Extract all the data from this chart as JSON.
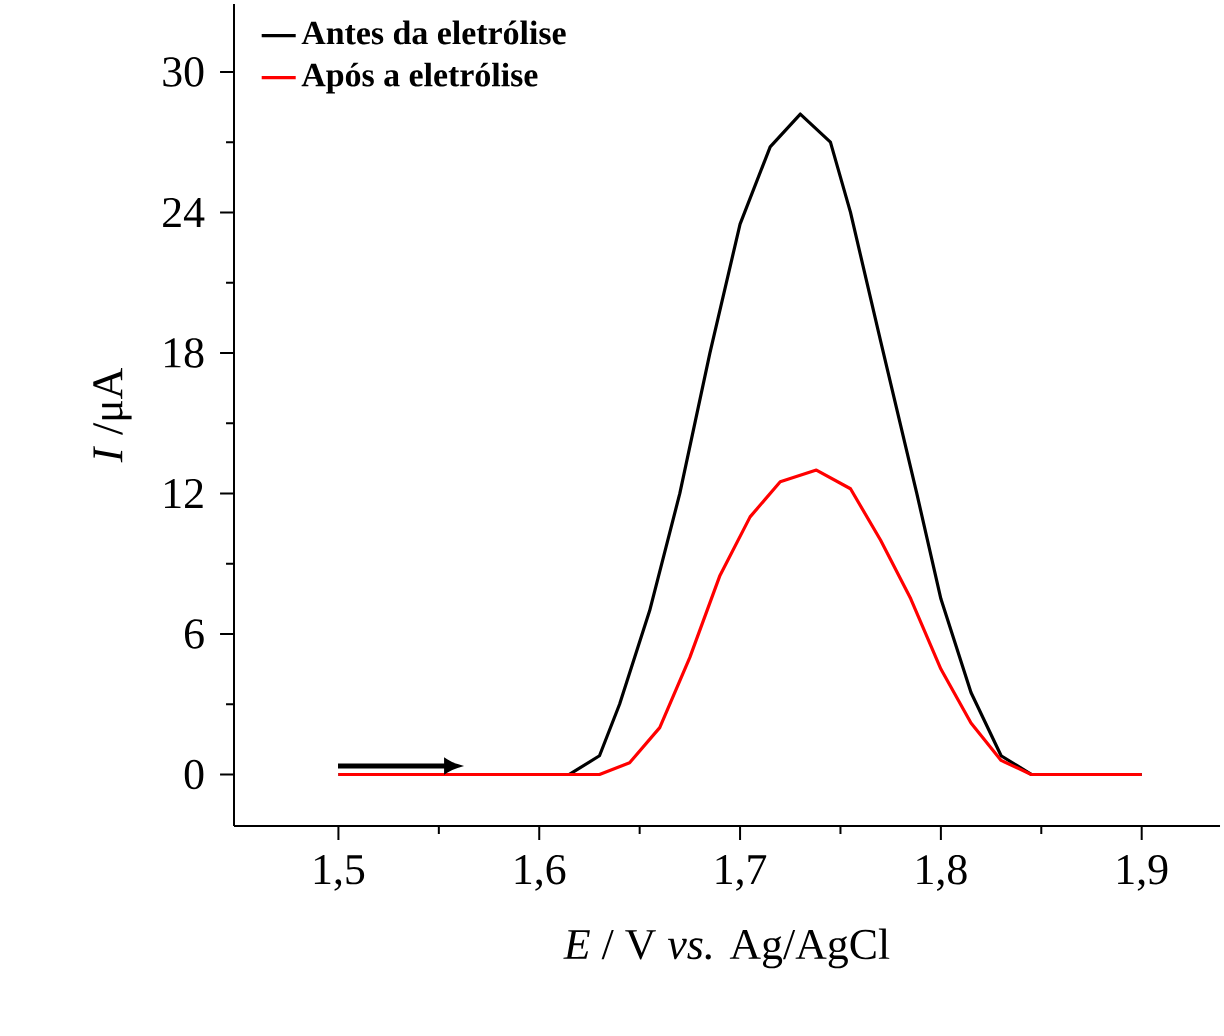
{
  "chart_data": {
    "type": "line",
    "xlabel": "*E* / V *vs.* Ag/AgCl",
    "ylabel": "*I* /μA",
    "xlim": [
      1.448,
      1.939
    ],
    "ylim": [
      -2.2,
      32.9
    ],
    "xticks": [
      {
        "value": 1.5,
        "label": "1,5"
      },
      {
        "value": 1.6,
        "label": "1,6"
      },
      {
        "value": 1.7,
        "label": "1,7"
      },
      {
        "value": 1.8,
        "label": "1,8"
      },
      {
        "value": 1.9,
        "label": "1,9"
      }
    ],
    "yticks": [
      0,
      6,
      12,
      18,
      24,
      30
    ],
    "legend": "top left",
    "grid": false,
    "marker": "none",
    "line_style": "solid",
    "series": [
      {
        "name": "Antes da eletrólise",
        "color": "#000000",
        "x": [
          1.5,
          1.6,
          1.615,
          1.63,
          1.64,
          1.655,
          1.67,
          1.685,
          1.7,
          1.715,
          1.73,
          1.745,
          1.755,
          1.77,
          1.788,
          1.8,
          1.815,
          1.83,
          1.845,
          1.9
        ],
        "values": [
          0,
          0,
          0,
          0.8,
          3,
          7,
          12,
          18,
          23.5,
          26.8,
          28.2,
          27,
          24,
          18.5,
          12,
          7.5,
          3.5,
          0.8,
          0,
          0
        ]
      },
      {
        "name": "Após a eletrólise",
        "color": "#ff0000",
        "x": [
          1.5,
          1.63,
          1.645,
          1.66,
          1.675,
          1.69,
          1.705,
          1.72,
          1.738,
          1.755,
          1.77,
          1.785,
          1.8,
          1.815,
          1.83,
          1.845,
          1.9
        ],
        "values": [
          0,
          0,
          0.5,
          2,
          5,
          8.5,
          11,
          12.5,
          13,
          12.2,
          10,
          7.5,
          4.5,
          2.2,
          0.6,
          0,
          0
        ]
      }
    ]
  }
}
